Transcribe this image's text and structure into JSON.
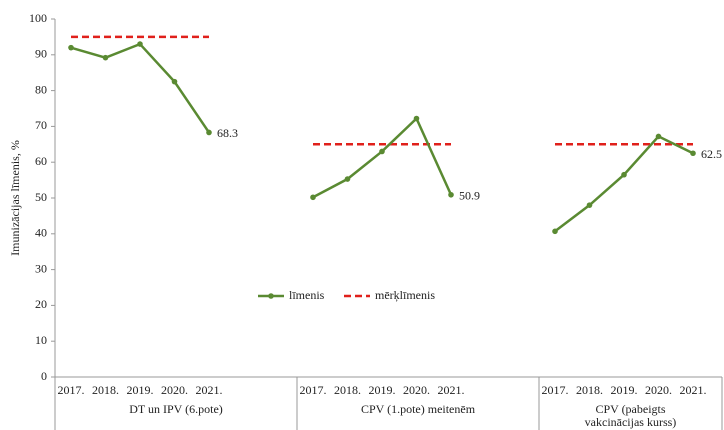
{
  "chart_data": {
    "type": "line",
    "y_label": "Imunizācijas līmenis, %",
    "groups": [
      {
        "label": "DT un IPV (6.pote)",
        "categories": [
          "2017.",
          "2018.",
          "2019.",
          "2020.",
          "2021."
        ]
      },
      {
        "label": "CPV (1.pote) meitenēm",
        "categories": [
          "2017.",
          "2018.",
          "2019.",
          "2020.",
          "2021."
        ]
      },
      {
        "label": "CPV (pabeigts vakcinācijas kurss) meitenēm",
        "categories": [
          "2017.",
          "2018.",
          "2019.",
          "2020.",
          "2021."
        ]
      }
    ],
    "series": [
      {
        "name": "līmenis",
        "color": "#5a8a32",
        "values": [
          [
            92,
            89.2,
            93,
            82.5,
            68.3
          ],
          [
            50.2,
            55.3,
            63,
            72.2,
            50.9
          ],
          [
            40.7,
            48,
            56.5,
            67.2,
            62.5
          ]
        ]
      },
      {
        "name": "mērķlīmenis",
        "color": "#e0201b",
        "dashed": true,
        "values": [
          95,
          65,
          65
        ]
      }
    ],
    "ylim": [
      0,
      100
    ],
    "yticks": [
      0,
      10,
      20,
      30,
      40,
      50,
      60,
      70,
      80,
      90,
      100
    ]
  }
}
